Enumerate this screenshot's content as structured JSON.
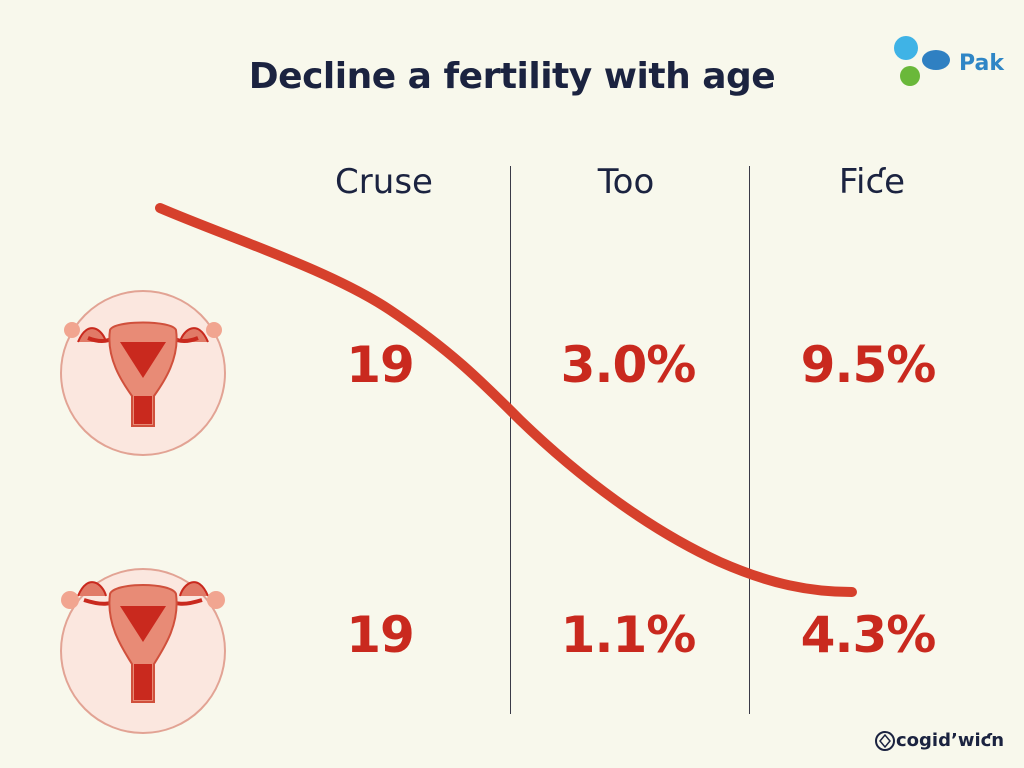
{
  "title": "Decline a fertility with age",
  "brand": {
    "label": "Pak"
  },
  "columns": [
    "Cruse",
    "Too",
    "Fiƈe"
  ],
  "rows": [
    {
      "values": [
        "19",
        "3.0%",
        "9.5%"
      ]
    },
    {
      "values": [
        "19",
        "1.1%",
        "4.3%"
      ]
    }
  ],
  "footer": {
    "label": "cogidʼwiƈn"
  },
  "colors": {
    "accent": "#c9291e",
    "curve": "#d6402c",
    "text": "#1b2340",
    "background": "#f8f8ec"
  },
  "icons": [
    "uterus-icon",
    "uterus-icon",
    "brand-logo-icon",
    "footer-logo-icon"
  ]
}
